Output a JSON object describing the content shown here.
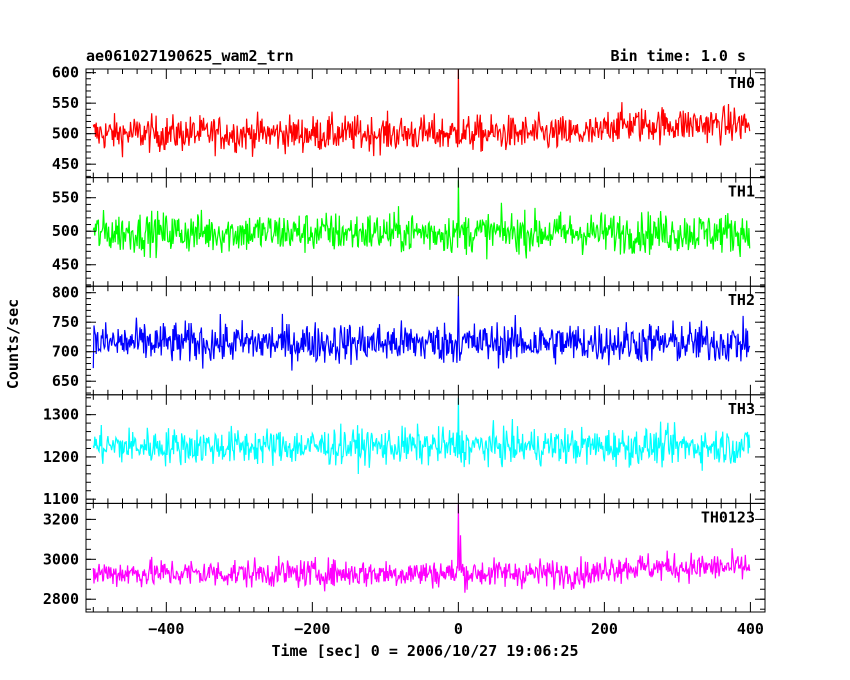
{
  "header": {
    "left": "ae061027190625_wam2_trn",
    "right": "Bin time: 1.0 s"
  },
  "chart_data": {
    "type": "line",
    "title": "ae061027190625_wam2_trn",
    "subtitle": "Bin time: 1.0 s",
    "xlabel": "Time [sec] 0 = 2006/10/27 19:06:25",
    "ylabel": "Counts/sec",
    "xlim": [
      -510,
      420
    ],
    "x_ticks": [
      -400,
      -200,
      0,
      200,
      400
    ],
    "x_tick_labels": [
      "−400",
      "−200",
      "0",
      "200",
      "400"
    ],
    "x_range": [
      -500,
      399
    ],
    "grid": false,
    "panels": [
      {
        "name": "TH0",
        "color": "#ff0000",
        "ylim": [
          428,
          606
        ],
        "ticks": [
          450,
          500,
          550,
          600
        ],
        "tick_labels": [
          "450",
          "500",
          "550",
          "600"
        ],
        "minor_step": 10,
        "mean": 500,
        "amplitude": 27,
        "spikes": [
          {
            "x": 0,
            "y": 605
          }
        ],
        "bumps": [
          {
            "x0": 200,
            "x1": 400,
            "y": 515
          }
        ]
      },
      {
        "name": "TH1",
        "color": "#00ff00",
        "ylim": [
          418,
          580
        ],
        "ticks": [
          450,
          500,
          550
        ],
        "tick_labels": [
          "450",
          "500",
          "550"
        ],
        "minor_step": 10,
        "mean": 498,
        "amplitude": 28,
        "spikes": [
          {
            "x": 0,
            "y": 576
          }
        ],
        "bumps": []
      },
      {
        "name": "TH2",
        "color": "#0000ff",
        "ylim": [
          627,
          811
        ],
        "ticks": [
          650,
          700,
          750,
          800
        ],
        "tick_labels": [
          "650",
          "700",
          "750",
          "800"
        ],
        "minor_step": 10,
        "mean": 715,
        "amplitude": 32,
        "spikes": [
          {
            "x": 0,
            "y": 795
          }
        ],
        "bumps": []
      },
      {
        "name": "TH3",
        "color": "#00ffff",
        "ylim": [
          1090,
          1347
        ],
        "ticks": [
          1100,
          1200,
          1300
        ],
        "tick_labels": [
          "1100",
          "1200",
          "1300"
        ],
        "minor_step": 20,
        "mean": 1225,
        "amplitude": 40,
        "spikes": [
          {
            "x": 0,
            "y": 1340
          }
        ],
        "bumps": []
      },
      {
        "name": "TH0123",
        "color": "#ff00ff",
        "ylim": [
          2736,
          3280
        ],
        "ticks": [
          2800,
          3000,
          3200
        ],
        "tick_labels": [
          "2800",
          "3000",
          "3200"
        ],
        "minor_step": 50,
        "mean": 2930,
        "amplitude": 65,
        "spikes": [
          {
            "x": 0,
            "y": 3275
          },
          {
            "x": 3,
            "y": 3120
          }
        ],
        "bumps": [
          {
            "x0": 200,
            "x1": 400,
            "y": 2960
          }
        ]
      }
    ]
  }
}
